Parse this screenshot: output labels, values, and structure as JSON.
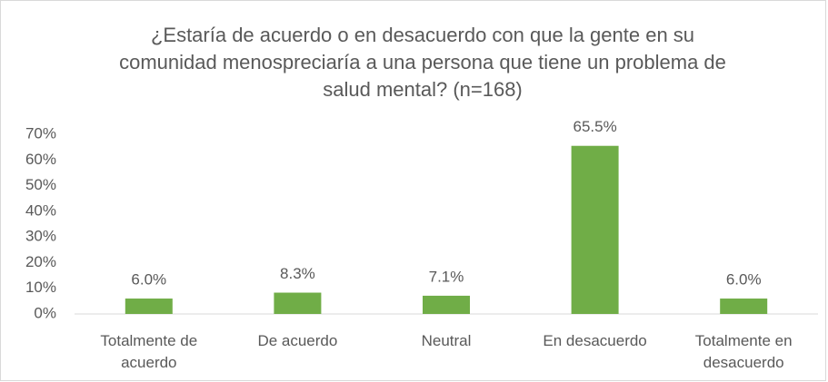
{
  "chart_data": {
    "type": "bar",
    "title": "¿Estaría de acuerdo o en desacuerdo con que la gente en su comunidad menospreciaría a una persona que tiene un problema de salud mental? (n=168)",
    "categories": [
      "Totalmente de acuerdo",
      "De acuerdo",
      "Neutral",
      "En desacuerdo",
      "Totalmente en desacuerdo"
    ],
    "values": [
      6.0,
      8.3,
      7.1,
      65.5,
      6.0
    ],
    "value_labels": [
      "6.0%",
      "8.3%",
      "7.1%",
      "65.5%",
      "6.0%"
    ],
    "color": "#70ad47",
    "ylim": [
      0,
      70
    ],
    "yticks": [
      {
        "value": 0,
        "label": "0%"
      },
      {
        "value": 10,
        "label": "10%"
      },
      {
        "value": 20,
        "label": "20%"
      },
      {
        "value": 30,
        "label": "30%"
      },
      {
        "value": 40,
        "label": "40%"
      },
      {
        "value": 50,
        "label": "50%"
      },
      {
        "value": 60,
        "label": "60%"
      },
      {
        "value": 70,
        "label": "70%"
      }
    ],
    "grid": false
  }
}
